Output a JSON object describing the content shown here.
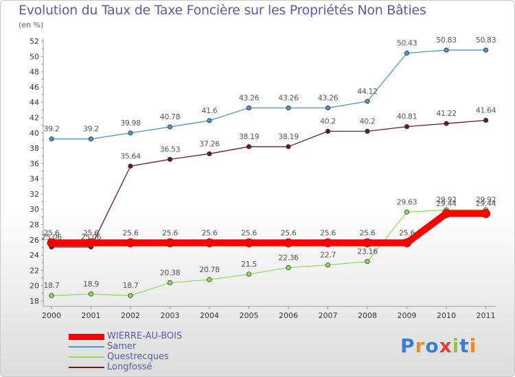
{
  "chart_data": {
    "type": "line",
    "title": "Evolution du Taux de Taxe Foncière sur les Propriétés Non Bâties",
    "unit_label": "(en %)",
    "x": [
      "2000",
      "2001",
      "2002",
      "2003",
      "2004",
      "2005",
      "2006",
      "2007",
      "2008",
      "2009",
      "2010",
      "2011"
    ],
    "ylim": [
      18,
      52
    ],
    "yticks": [
      18,
      20,
      22,
      24,
      26,
      28,
      30,
      32,
      34,
      36,
      38,
      40,
      42,
      44,
      46,
      48,
      50,
      52
    ],
    "grid": false,
    "legend_position": "bottom-left",
    "series": [
      {
        "name": "WIERRE-AU-BOIS",
        "color": "#ff0000",
        "values": [
          25.6,
          25.6,
          25.6,
          25.6,
          25.6,
          25.6,
          25.6,
          25.6,
          25.6,
          25.6,
          29.44,
          29.44
        ],
        "labels": [
          "25.6",
          "25.6",
          "25.6",
          "25.6",
          "25.6",
          "25.6",
          "25.6",
          "25.6",
          "25.6",
          "25.6",
          "29.44",
          "29.44"
        ]
      },
      {
        "name": "Samer",
        "color": "#4f94cd",
        "values": [
          39.2,
          39.2,
          39.98,
          40.78,
          41.6,
          43.26,
          43.26,
          43.26,
          44.12,
          50.43,
          50.83,
          50.83
        ],
        "labels": [
          "39.2",
          "39.2",
          "39.98",
          "40.78",
          "41.6",
          "43.26",
          "43.26",
          "43.26",
          "44.12",
          "50.43",
          "50.83",
          "50.83"
        ]
      },
      {
        "name": "Questrecques",
        "color": "#8ee05a",
        "values": [
          18.7,
          18.9,
          18.7,
          20.38,
          20.78,
          21.5,
          22.36,
          22.7,
          23.16,
          29.63,
          29.92,
          29.92
        ],
        "labels": [
          "18.7",
          "18.9",
          "18.7",
          "20.38",
          "20.78",
          "21.5",
          "22.36",
          "22.7",
          "23.16",
          "29.63",
          "29.92",
          "29.92"
        ]
      },
      {
        "name": "Longfossé",
        "color": "#6b1a1a",
        "values": [
          25.06,
          25.06,
          35.64,
          36.53,
          37.26,
          38.19,
          38.19,
          40.2,
          40.2,
          40.81,
          41.22,
          41.64
        ],
        "labels": [
          "25.06",
          "25.06",
          "35.64",
          "36.53",
          "37.26",
          "38.19",
          "38.19",
          "40.2",
          "40.2",
          "40.81",
          "41.22",
          "41.64"
        ]
      }
    ]
  },
  "brand": {
    "text": "Proxiti",
    "colors": [
      "#3a7dd8",
      "#f08c1e",
      "#3a7dd8",
      "#e83a3a",
      "#8cc83c",
      "#3a7dd8",
      "#f08c1e"
    ]
  }
}
